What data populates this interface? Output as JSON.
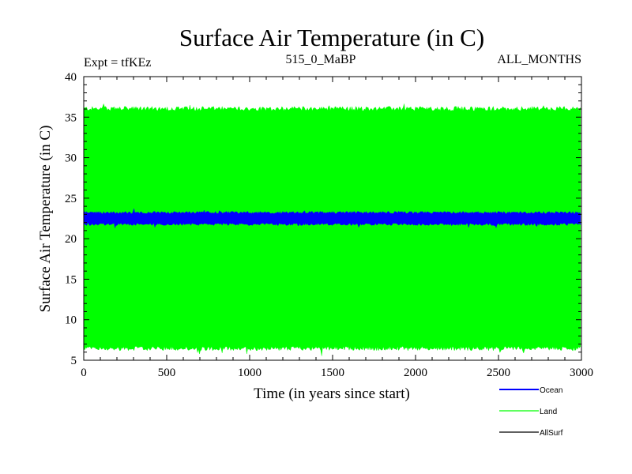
{
  "chart_data": {
    "type": "line",
    "title": "Surface Air Temperature (in C)",
    "subtitle_left": "Expt = tfKEz",
    "subtitle_center": "515_0_MaBP",
    "subtitle_right": "ALL_MONTHS",
    "xlabel": "Time (in years since start)",
    "ylabel": "Surface Air Temperature (in C)",
    "xlim": [
      0,
      3000
    ],
    "ylim": [
      5,
      40
    ],
    "x_ticks": [
      0,
      500,
      1000,
      1500,
      2000,
      2500,
      3000
    ],
    "y_ticks": [
      5,
      10,
      15,
      20,
      25,
      30,
      35,
      40
    ],
    "legend_position": "bottom-right",
    "series": [
      {
        "name": "Ocean",
        "color": "#0000ff",
        "mean": 22.5,
        "min": 21.8,
        "max": 23.2
      },
      {
        "name": "Land",
        "color": "#00ff00",
        "mean": 21.3,
        "min": 6.5,
        "max": 36.0
      },
      {
        "name": "AllSurf",
        "color": "#000000",
        "mean": null,
        "min": null,
        "max": null
      }
    ]
  }
}
